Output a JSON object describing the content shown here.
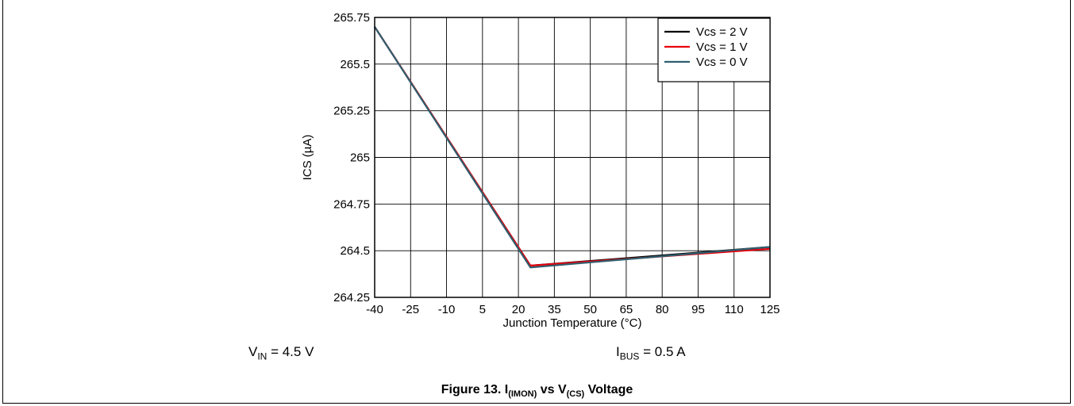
{
  "chart_data": {
    "type": "line",
    "title": "",
    "xlabel": "Junction Temperature (°C)",
    "ylabel": "ICS (µA)",
    "xlim": [
      -40,
      125
    ],
    "ylim": [
      264.25,
      265.75
    ],
    "x_ticks": [
      "-40",
      "-25",
      "-10",
      "5",
      "20",
      "35",
      "50",
      "65",
      "80",
      "95",
      "110",
      "125"
    ],
    "y_ticks": [
      "265.75",
      "265.5",
      "265.25",
      "265",
      "264.75",
      "264.5",
      "264.25"
    ],
    "grid": true,
    "legend_position": "top-right",
    "series": [
      {
        "name": "Vcs = 2 V",
        "color": "#000000",
        "x": [
          -40,
          25,
          125
        ],
        "y": [
          265.7,
          264.42,
          264.52
        ]
      },
      {
        "name": "Vcs = 1 V",
        "color": "#e8000b",
        "x": [
          -40,
          25,
          125
        ],
        "y": [
          265.7,
          264.42,
          264.51
        ]
      },
      {
        "name": "Vcs = 0 V",
        "color": "#2f5e6e",
        "x": [
          -40,
          25,
          125
        ],
        "y": [
          265.7,
          264.41,
          264.52
        ]
      }
    ]
  },
  "conditions": {
    "vin": {
      "base": "V",
      "sub": "IN",
      "rest": " = 4.5 V"
    },
    "ibus": {
      "base": "I",
      "sub": "BUS",
      "rest": " = 0.5 A"
    }
  },
  "caption": {
    "prefix": "Figure 13. I",
    "sub1": "(IMON)",
    "middle": " vs V",
    "sub2": "(CS)",
    "suffix": " Voltage"
  }
}
